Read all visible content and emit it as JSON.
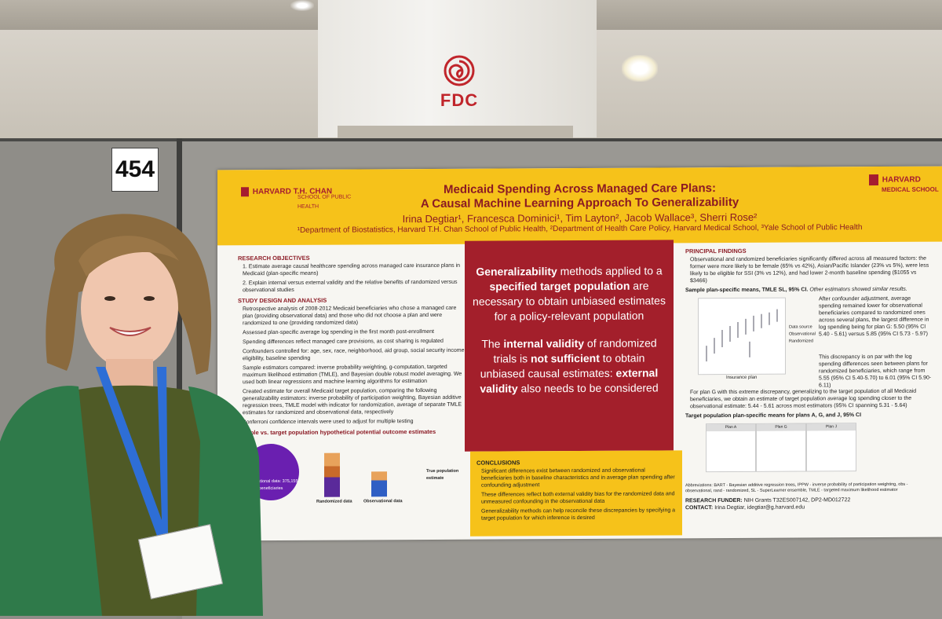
{
  "scene": {
    "venue_sign": "FDC",
    "booth_number": "454"
  },
  "poster": {
    "header": {
      "left_logo_main": "HARVARD T.H. CHAN",
      "left_logo_sub": "SCHOOL OF PUBLIC HEALTH",
      "right_logo_main": "HARVARD",
      "right_logo_sub": "MEDICAL SCHOOL",
      "title_line1": "Medicaid Spending Across Managed Care Plans:",
      "title_line2": "A Causal Machine Learning Approach To Generalizability",
      "authors": "Irina Degtiar¹, Francesca Dominici¹, Tim Layton², Jacob Wallace³, Sherri Rose²",
      "affiliations": "¹Department of Biostatistics, Harvard T.H. Chan School of Public Health, ²Department of Health Care Policy, Harvard Medical School, ³Yale School of Public Health"
    },
    "left_column": {
      "objectives_heading": "RESEARCH OBJECTIVES",
      "objectives": [
        "1. Estimate average causal healthcare spending across managed care insurance plans in Medicaid (plan-specific means)",
        "2. Explain internal versus external validity and the relative benefits of randomized versus observational studies"
      ],
      "design_heading": "STUDY DESIGN AND ANALYSIS",
      "design_items": [
        "Retrospective analysis of 2008-2012 Medicaid beneficiaries who chose a managed care plan (providing observational data) and those who did not choose a plan and were randomized to one (providing randomized data)",
        "Assessed plan-specific average log spending in the first month post-enrollment",
        "Spending differences reflect managed care provisions, as cost sharing is regulated",
        "Confounders controlled for: age, sex, race, neighborhood, aid group, social security income eligibility, baseline spending",
        "Sample estimators compared: inverse probability weighting, g-computation, targeted maximum likelihood estimation (TMLE), and Bayesian double robust model averaging. We used both linear regressions and machine learning algorithms for estimation",
        "Created estimate for overall Medicaid target population, comparing the following generalizability estimators: inverse probability of participation weighting, Bayesian additive regression trees, TMLE model with indicator for randomization, average of separate TMLE estimates for randomized and observational data, respectively",
        "Bonferroni confidence intervals were used to adjust for multiple testing"
      ],
      "figure_heading": "Sample vs. target population hypothetical potential outcome estimates",
      "figure_circle_label": "Observational data: 375,155 beneficiaries",
      "figure_labels": [
        "Randomized data",
        "Observational data",
        "True population estimate"
      ]
    },
    "center": {
      "message1_bold": "Generalizability",
      "message1_a": " methods applied to a ",
      "message1_bold2": "specified target population",
      "message1_b": " are necessary to obtain unbiased estimates for a policy-relevant population",
      "message2_a": "The ",
      "message2_bold": "internal validity",
      "message2_b": " of randomized trials is ",
      "message2_bold2": "not sufficient",
      "message2_c": " to obtain unbiased causal estimates: ",
      "message2_bold3": "external validity",
      "message2_d": " also needs to be considered",
      "conclusions_heading": "CONCLUSIONS",
      "conclusions": [
        "Significant differences exist between randomized and observational beneficiaries both in baseline characteristics and in average plan spending after confounding adjustment",
        "These differences reflect both external validity bias for the randomized data and unmeasured confounding in the observational data",
        "Generalizability methods can help reconcile these discrepancies by specifying a target population for which inference is desired"
      ]
    },
    "right_column": {
      "findings_heading": "PRINCIPAL FINDINGS",
      "finding1": "Observational and randomized beneficiaries significantly differed across all measured factors: the former were more likely to be female (65% vs 42%), Asian/Pacific Islander (23% vs 5%), were less likely to be eligible for SSI (3% vs 12%), and had lower 2-month baseline spending ($1055 vs $3466)",
      "chart1_heading": "Sample plan-specific means, TMLE SL, 95% CI.",
      "chart1_note": "Other estimators showed similar results.",
      "chart1_xlabel": "Insurance plan",
      "chart1_legend_title": "Data source",
      "chart1_legend": [
        "Observational",
        "Randomized"
      ],
      "finding2": "After confounder adjustment, average spending remained lower for observational beneficiaries compared to randomized ones across several plans, the largest difference in log spending being for plan G: 5.50 (95% CI 5.40 - 5.61) versus 5.85 (95% CI 5.73 - 5.97)",
      "finding3": "This discrepancy is on par with the log spending differences seen between plans for randomized beneficiaries, which range from 5.55 (95% CI 5.40-5.70) to 6.01 (95% CI 5.90-6.11)",
      "finding4": "For plan G with this extreme discrepancy, generalizing to the target population of all Medicaid beneficiaries, we obtain an estimate of target population average log spending closer to the observational estimate: 5.44 - 5.61 across most estimators (95% CI spanning 5.31 - 5.64)",
      "chart2_heading": "Target population plan-specific means for plans A, G, and J, 95% CI",
      "chart2_panels": [
        "Plan A",
        "Plan G",
        "Plan J"
      ],
      "abbreviations": "Abbreviations: BART - Bayesian additive regression trees, IPPW - inverse probability of participation weighting, obs - observational, rand - randomized, SL - SuperLearner ensemble, TMLE - targeted maximum likelihood estimator",
      "funder_label": "RESEARCH FUNDER:",
      "funder": "NIH Grants T32ES007142, DP2-MD012722",
      "contact_label": "CONTACT:",
      "contact": "Irina Degtiar, idegtiar@g.harvard.edu"
    }
  },
  "colors": {
    "harvard_crimson": "#a31f2b",
    "poster_yellow": "#f6c21a",
    "lanyard_blue": "#2e6ed6",
    "sweater_green": "#2f7a4a"
  }
}
